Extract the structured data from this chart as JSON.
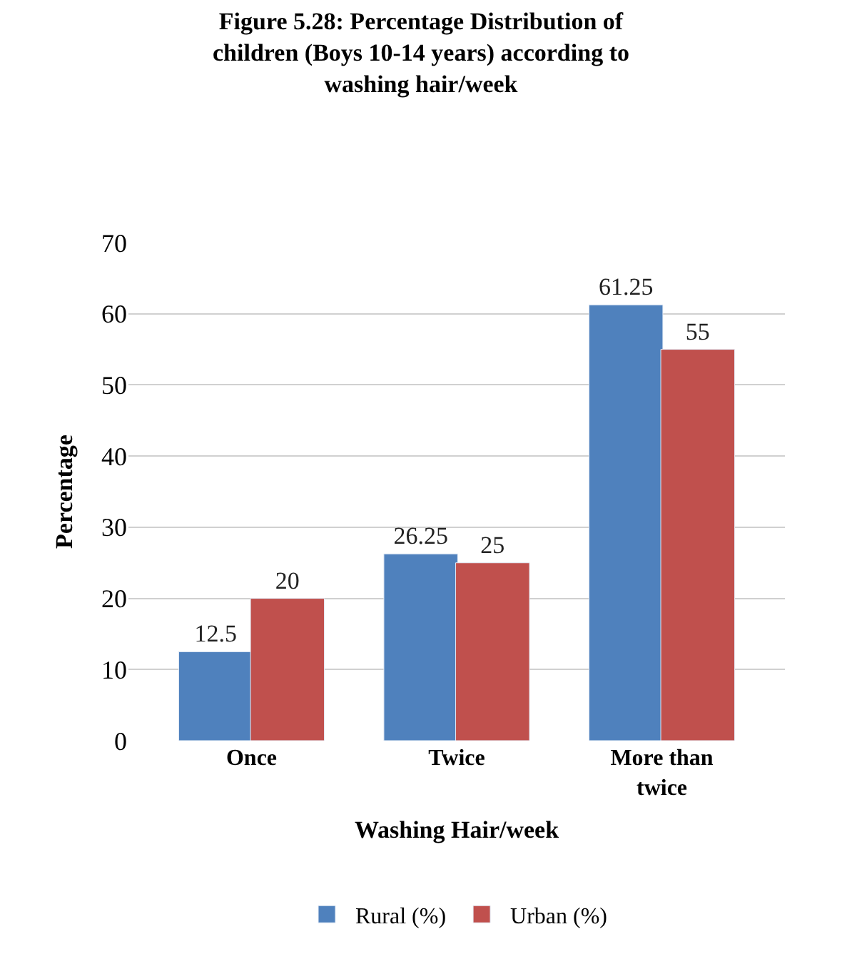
{
  "chart_data": {
    "type": "bar",
    "title": "Figure 5.28: Percentage Distribution of children (Boys 10-14 years) according to washing hair/week",
    "xlabel": "Washing Hair/week",
    "ylabel": "Percentage",
    "categories": [
      "Once",
      "Twice",
      "More than twice"
    ],
    "series": [
      {
        "name": "Rural (%)",
        "color": "#4f81bd",
        "values": [
          12.5,
          26.25,
          61.25
        ]
      },
      {
        "name": "Urban (%)",
        "color": "#c0504d",
        "values": [
          20,
          25,
          55
        ]
      }
    ],
    "ylim": [
      0,
      70
    ],
    "yticks": [
      0,
      10,
      20,
      30,
      40,
      50,
      60,
      70
    ],
    "grid": "y",
    "legend": "bottom",
    "data_labels": true
  }
}
